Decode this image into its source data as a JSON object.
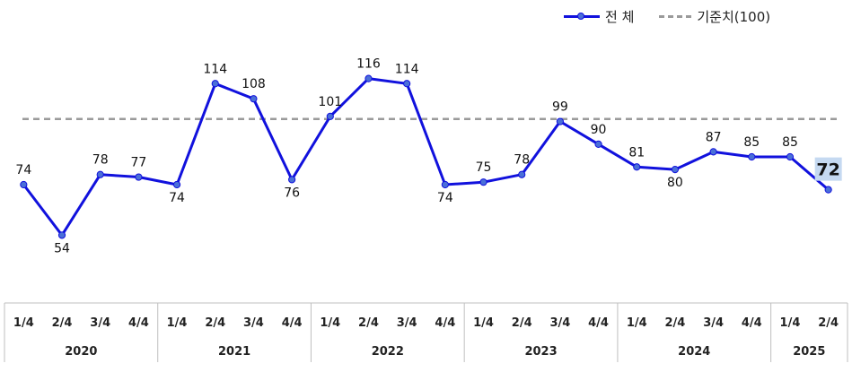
{
  "chart_data": {
    "type": "line",
    "title": "",
    "xlabel": "",
    "ylabel": "",
    "ylim": [
      30,
      140
    ],
    "grid": false,
    "legend_position": "top-right",
    "colors": {
      "series": "#1111dd",
      "marker": "#4a6fd8",
      "reference": "#9a9a9a",
      "highlight_bg": "#c5d9f1"
    },
    "categories": [
      "1/4",
      "2/4",
      "3/4",
      "4/4",
      "1/4",
      "2/4",
      "3/4",
      "4/4",
      "1/4",
      "2/4",
      "3/4",
      "4/4",
      "1/4",
      "2/4",
      "3/4",
      "4/4",
      "1/4",
      "2/4",
      "3/4",
      "4/4",
      "1/4",
      "2/4"
    ],
    "groups": [
      {
        "label": "2020",
        "count": 4
      },
      {
        "label": "2021",
        "count": 4
      },
      {
        "label": "2022",
        "count": 4
      },
      {
        "label": "2023",
        "count": 4
      },
      {
        "label": "2024",
        "count": 4
      },
      {
        "label": "2025",
        "count": 2
      }
    ],
    "series": [
      {
        "name": "전 체",
        "values": [
          74,
          54,
          78,
          77,
          74,
          114,
          108,
          76,
          101,
          116,
          114,
          74,
          75,
          78,
          99,
          90,
          81,
          80,
          87,
          85,
          85,
          72
        ]
      }
    ],
    "reference_line": {
      "name": "기준치(100)",
      "value": 100
    },
    "highlight_last_label": true
  }
}
